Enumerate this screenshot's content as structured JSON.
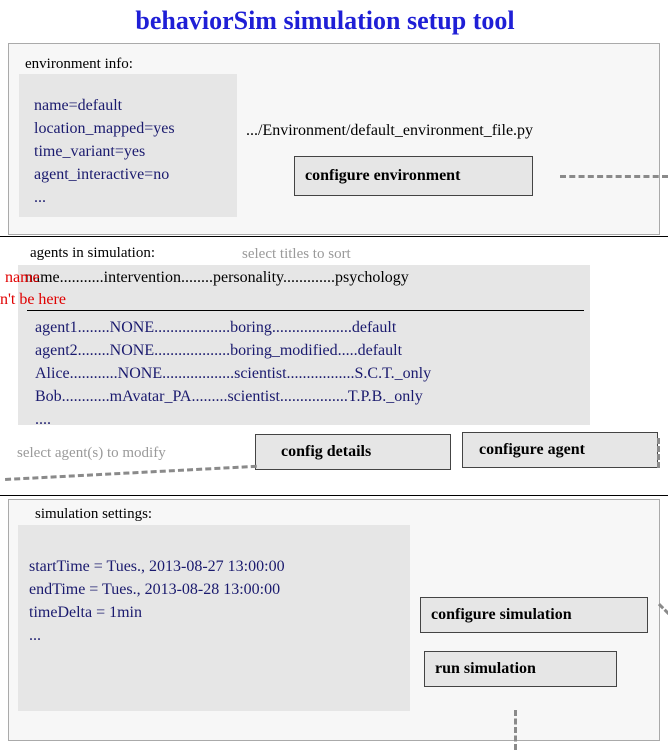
{
  "title": "behaviorSim simulation setup tool",
  "environment": {
    "label": "environment info:",
    "lines": [
      "name=default",
      "location_mapped=yes",
      "time_variant=yes",
      "agent_interactive=no",
      "..."
    ],
    "file_path": ".../Environment/default_environment_file.py",
    "configure_button": "configure environment"
  },
  "agents": {
    "label": "agents in simulation:",
    "sort_hint": "select titles to sort",
    "header": "name...........intervention........personality.............psychology",
    "rows": [
      "agent1........NONE...................boring....................default",
      "agent2........NONE...................boring_modified.....default",
      "Alice............NONE..................scientist.................S.C.T._only",
      "Bob............mAvatar_PA.........scientist.................T.P.B._only",
      "...."
    ],
    "error_line1": "name",
    "error_line2": "n't be here",
    "modify_hint": "select agent(s) to modify",
    "details_button": "config details",
    "configure_button": "configure agent"
  },
  "simulation": {
    "label": "simulation settings:",
    "lines": [
      "startTime = Tues., 2013-08-27 13:00:00",
      "endTime = Tues., 2013-08-28 13:00:00",
      "timeDelta = 1min",
      "..."
    ],
    "configure_button": "configure simulation",
    "run_button": "run simulation"
  },
  "colors": {
    "title": "#1f1fd6",
    "values": "#1a1a6e",
    "hint": "#9a9a9a",
    "error": "#e00000",
    "box": "#e6e6e6"
  }
}
